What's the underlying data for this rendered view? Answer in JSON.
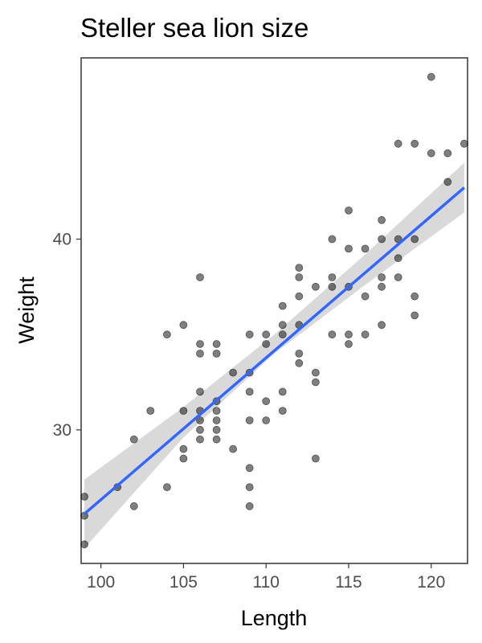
{
  "chart_data": {
    "type": "scatter",
    "title": "Steller sea lion size",
    "xlabel": "Length",
    "ylabel": "Weight",
    "xlim": [
      98.8,
      122.2
    ],
    "ylim": [
      23.0,
      49.5
    ],
    "xticks": [
      100,
      105,
      110,
      115,
      120
    ],
    "yticks": [
      30,
      40
    ],
    "grid": false,
    "colors": {
      "points": "#000000",
      "trend": "#3366ff",
      "band": "#bfbfbf",
      "frame": "#333333"
    },
    "trend_line": {
      "x": [
        99,
        122
      ],
      "y": [
        25.6,
        42.7
      ]
    },
    "confidence_band": {
      "x": [
        99,
        105,
        110.5,
        116,
        122
      ],
      "lower": [
        23.8,
        29.6,
        34.0,
        37.6,
        41.4
      ],
      "upper": [
        27.4,
        31.2,
        35.0,
        39.2,
        44.0
      ]
    },
    "points": [
      [
        99,
        26.5
      ],
      [
        99,
        25.5
      ],
      [
        99,
        24
      ],
      [
        101,
        27
      ],
      [
        102,
        26
      ],
      [
        102,
        29.5
      ],
      [
        103,
        31
      ],
      [
        104,
        35
      ],
      [
        104,
        27
      ],
      [
        105,
        35.5
      ],
      [
        105,
        31
      ],
      [
        105,
        29
      ],
      [
        105,
        28.5
      ],
      [
        106,
        38
      ],
      [
        106,
        34.5
      ],
      [
        106,
        34
      ],
      [
        106,
        32
      ],
      [
        106,
        31
      ],
      [
        106,
        30.5
      ],
      [
        106,
        30
      ],
      [
        106,
        29.5
      ],
      [
        107,
        34.5
      ],
      [
        107,
        34
      ],
      [
        107,
        31.5
      ],
      [
        107,
        31
      ],
      [
        107,
        30.5
      ],
      [
        107,
        30
      ],
      [
        107,
        29.5
      ],
      [
        108,
        33
      ],
      [
        108,
        29
      ],
      [
        109,
        35
      ],
      [
        109,
        33
      ],
      [
        109,
        32
      ],
      [
        109,
        30.5
      ],
      [
        109,
        28
      ],
      [
        109,
        27
      ],
      [
        109,
        26
      ],
      [
        110,
        35
      ],
      [
        110,
        34.5
      ],
      [
        110,
        31.5
      ],
      [
        110,
        30.5
      ],
      [
        111,
        36.5
      ],
      [
        111,
        35.5
      ],
      [
        111,
        35
      ],
      [
        111,
        32
      ],
      [
        111,
        31
      ],
      [
        112,
        38.5
      ],
      [
        112,
        38
      ],
      [
        112,
        37
      ],
      [
        112,
        35.5
      ],
      [
        112,
        34
      ],
      [
        112,
        33.5
      ],
      [
        113,
        37.5
      ],
      [
        113,
        33
      ],
      [
        113,
        32.5
      ],
      [
        113,
        28.5
      ],
      [
        114,
        40
      ],
      [
        114,
        38
      ],
      [
        114,
        37.5
      ],
      [
        114,
        35
      ],
      [
        115,
        41.5
      ],
      [
        115,
        39.5
      ],
      [
        115,
        37.5
      ],
      [
        115,
        35
      ],
      [
        115,
        34.5
      ],
      [
        116,
        39.5
      ],
      [
        116,
        37
      ],
      [
        116,
        35
      ],
      [
        117,
        41
      ],
      [
        117,
        40
      ],
      [
        117,
        38
      ],
      [
        117,
        37.5
      ],
      [
        117,
        35.5
      ],
      [
        118,
        45
      ],
      [
        118,
        40
      ],
      [
        118,
        39
      ],
      [
        118,
        38
      ],
      [
        119,
        45
      ],
      [
        119,
        40
      ],
      [
        119,
        37
      ],
      [
        119,
        36
      ],
      [
        120,
        48.5
      ],
      [
        120,
        44.5
      ],
      [
        121,
        44.5
      ],
      [
        121,
        43
      ],
      [
        122,
        45
      ]
    ]
  }
}
